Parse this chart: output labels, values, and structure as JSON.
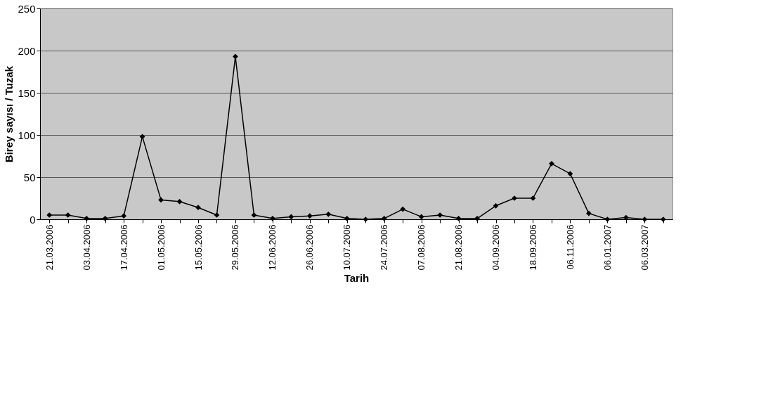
{
  "chart_data": {
    "type": "line",
    "xlabel": "Tarih",
    "ylabel": "Birey sayısı / Tuzak",
    "categories": [
      "21.03.2006",
      null,
      "03.04.2006",
      null,
      "17.04.2006",
      null,
      "01.05.2006",
      null,
      "15.05.2006",
      null,
      "29.05.2006",
      null,
      "12.06.2006",
      null,
      "26.06.2006",
      null,
      "10.07.2006",
      null,
      "24.07.2006",
      null,
      "07.08.2006",
      null,
      "21.08.2006",
      null,
      "04.09.2006",
      null,
      "18.09.2006",
      null,
      "06.11.2006",
      null,
      "06.01.2007",
      null,
      "06.03.2007",
      null
    ],
    "series": [
      {
        "color": "#000000",
        "values": [
          5,
          5,
          1,
          1,
          4,
          98,
          23,
          21,
          14,
          5,
          193,
          5,
          1,
          3,
          4,
          6,
          1,
          0,
          1,
          12,
          3,
          5,
          1,
          1,
          16,
          25,
          25,
          66,
          54,
          7,
          0,
          2,
          0,
          0
        ]
      }
    ],
    "ylim": [
      0,
      250
    ],
    "yticks": [
      0,
      50,
      100,
      150,
      200,
      250
    ],
    "grid": "y",
    "marker": "diamond",
    "line_style": "solid"
  }
}
